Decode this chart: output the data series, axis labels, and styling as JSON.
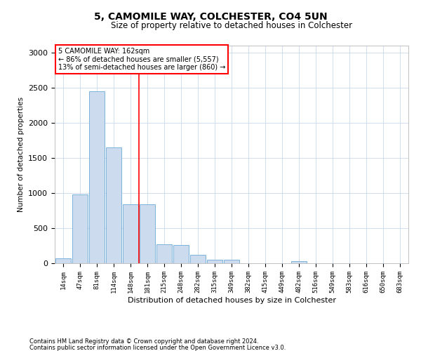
{
  "title1": "5, CAMOMILE WAY, COLCHESTER, CO4 5UN",
  "title2": "Size of property relative to detached houses in Colchester",
  "xlabel": "Distribution of detached houses by size in Colchester",
  "ylabel": "Number of detached properties",
  "categories": [
    "14sqm",
    "47sqm",
    "81sqm",
    "114sqm",
    "148sqm",
    "181sqm",
    "215sqm",
    "248sqm",
    "282sqm",
    "315sqm",
    "349sqm",
    "382sqm",
    "415sqm",
    "449sqm",
    "482sqm",
    "516sqm",
    "549sqm",
    "583sqm",
    "616sqm",
    "650sqm",
    "683sqm"
  ],
  "values": [
    70,
    980,
    2450,
    1650,
    840,
    840,
    270,
    260,
    120,
    55,
    55,
    0,
    0,
    0,
    30,
    0,
    0,
    0,
    0,
    0,
    0
  ],
  "bar_color": "#ccdcee",
  "bar_edge_color": "#6aaad4",
  "red_line_x": 4.5,
  "annotation_line1": "5 CAMOMILE WAY: 162sqm",
  "annotation_line2": "← 86% of detached houses are smaller (5,557)",
  "annotation_line3": "13% of semi-detached houses are larger (860) →",
  "ylim": [
    0,
    3100
  ],
  "yticks": [
    0,
    500,
    1000,
    1500,
    2000,
    2500,
    3000
  ],
  "footnote1": "Contains HM Land Registry data © Crown copyright and database right 2024.",
  "footnote2": "Contains public sector information licensed under the Open Government Licence v3.0."
}
